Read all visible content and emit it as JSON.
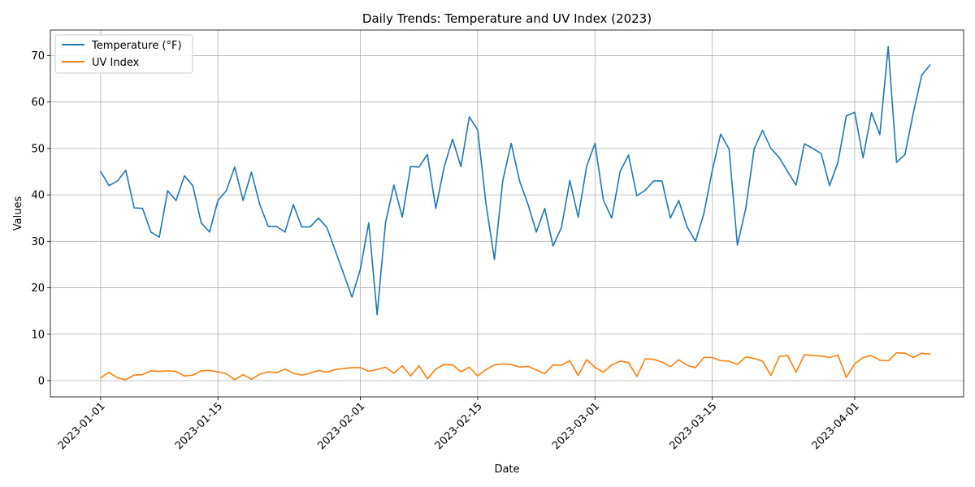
{
  "chart_data": {
    "type": "line",
    "title": "Daily Trends: Temperature and UV Index (2023)",
    "xlabel": "Date",
    "ylabel": "Values",
    "x_start": "2023-01-01",
    "x_tick_labels": [
      "2023-01-01",
      "2023-01-15",
      "2023-02-01",
      "2023-02-15",
      "2023-03-01",
      "2023-03-15",
      "2023-04-01"
    ],
    "y_ticks": [
      0,
      10,
      20,
      30,
      40,
      50,
      60,
      70
    ],
    "xlim": [
      "2022-12-26",
      "2023-04-14"
    ],
    "ylim": [
      -3.5,
      75.5
    ],
    "grid": true,
    "legend_position": "top-left",
    "series": [
      {
        "name": "Temperature (°F)",
        "color": "#1f77b4",
        "values": [
          45,
          42,
          43,
          45.3,
          37.2,
          37.1,
          32,
          30.9,
          40.9,
          38.8,
          44.1,
          42,
          34,
          32,
          38.8,
          40.9,
          46,
          38.8,
          44.9,
          37.9,
          33.2,
          33.2,
          32,
          37.9,
          33.1,
          33.1,
          35,
          33,
          28,
          23,
          18,
          24,
          34,
          14.2,
          34,
          42.1,
          35.2,
          46.1,
          46,
          48.7,
          37.1,
          46,
          52,
          46.1,
          56.8,
          54,
          38,
          26.1,
          43.1,
          51.1,
          43,
          38,
          32,
          37.1,
          29,
          33,
          43.1,
          35.2,
          46.1,
          51.1,
          38.9,
          35,
          45,
          48.6,
          39.8,
          41,
          43,
          43,
          35,
          38.8,
          33.1,
          30,
          36,
          45.2,
          53.1,
          49.9,
          29.2,
          37.1,
          49.9,
          53.9,
          50,
          48,
          45,
          42.1,
          51,
          50,
          48.9,
          42,
          47,
          57,
          57.8,
          48,
          57.7,
          53,
          71.9,
          47,
          48.7,
          57.7,
          65.8,
          68
        ]
      },
      {
        "name": "UV Index",
        "color": "#ff7f0e",
        "values": [
          0.6,
          1.8,
          0.6,
          0.2,
          1.2,
          1.3,
          2.1,
          2,
          2.1,
          2,
          1,
          1.2,
          2.1,
          2.2,
          1.9,
          1.5,
          0.2,
          1.3,
          0.3,
          1.4,
          1.9,
          1.7,
          2.5,
          1.6,
          1.2,
          1.6,
          2.2,
          1.8,
          2.4,
          2.6,
          2.8,
          2.8,
          2,
          2.4,
          2.9,
          1.6,
          3.2,
          1,
          3.2,
          0.4,
          2.5,
          3.5,
          3.4,
          1.9,
          2.9,
          1,
          2.4,
          3.4,
          3.6,
          3.5,
          2.9,
          3.1,
          2.3,
          1.5,
          3.4,
          3.3,
          4.3,
          1.1,
          4.5,
          2.9,
          1.8,
          3.4,
          4.2,
          3.9,
          0.9,
          4.7,
          4.6,
          4,
          3,
          4.5,
          3.3,
          2.8,
          5,
          5,
          4.3,
          4.2,
          3.5,
          5.1,
          4.8,
          4.2,
          1.1,
          5.2,
          5.4,
          1.8,
          5.6,
          5.4,
          5.3,
          5,
          5.5,
          0.7,
          3.6,
          5,
          5.4,
          4.4,
          4.3,
          6,
          5.9,
          5,
          5.9,
          5.7
        ]
      }
    ]
  }
}
